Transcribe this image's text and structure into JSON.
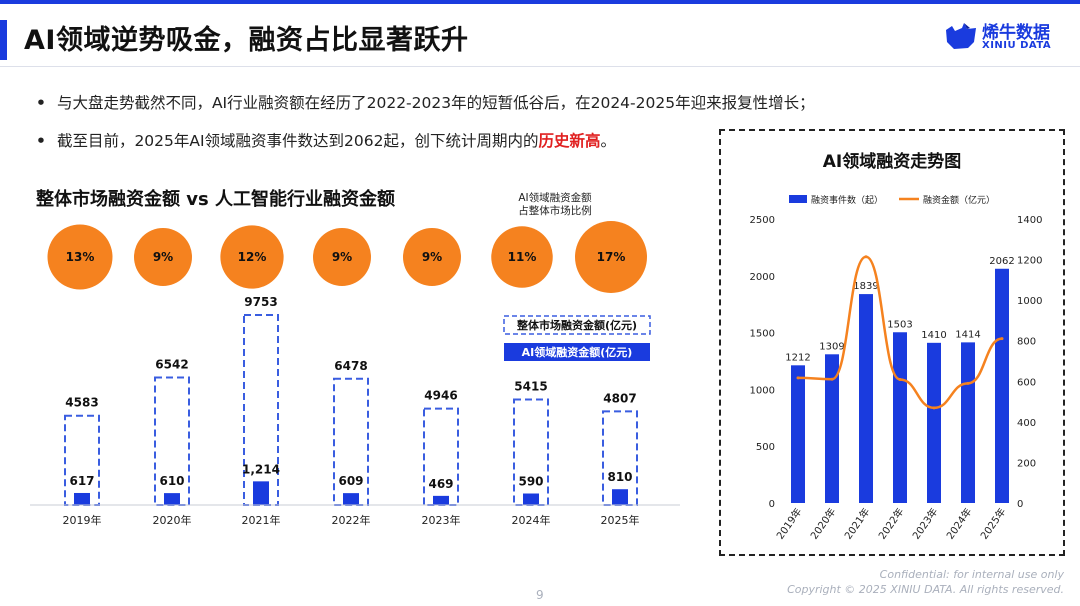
{
  "header": {
    "title": "AI领域逆势吸金，融资占比显著跃升",
    "logo_name": "烯牛数据",
    "logo_sub": "XINIU DATA"
  },
  "bullets": [
    {
      "text": "与大盘走势截然不同，AI行业融资额在经历了2022-2023年的短暂低谷后，在2024-2025年迎来报复性增长；"
    },
    {
      "text_before": "截至目前，2025年AI领域融资事件数达到2062起，创下统计周期内的",
      "highlight": "历史新高",
      "text_after": "。"
    }
  ],
  "colors": {
    "brand_blue": "#1a3bde",
    "orange": "#f5821f",
    "highlight_red": "#e02020"
  },
  "chart_data": [
    {
      "type": "bar",
      "title": "整体市场融资金额 vs 人工智能行业融资金额",
      "categories": [
        "2019年",
        "2020年",
        "2021年",
        "2022年",
        "2023年",
        "2024年",
        "2025年"
      ],
      "series": [
        {
          "name": "整体市场融资金额(亿元)",
          "values": [
            4583,
            6542,
            9753,
            6478,
            4946,
            5415,
            4807
          ],
          "labels": [
            "4583",
            "6542",
            "9753",
            "6478",
            "4946",
            "5415",
            "4807"
          ]
        },
        {
          "name": "AI领域融资金额(亿元)",
          "values": [
            617,
            610,
            1214,
            609,
            469,
            590,
            810
          ],
          "labels": [
            "617",
            "610",
            "1,214",
            "609",
            "469",
            "590",
            "810"
          ]
        }
      ],
      "ratio_caption_lines": [
        "AI领域融资金额",
        "占整体市场比例"
      ],
      "ratios": [
        "13%",
        "9%",
        "12%",
        "9%",
        "9%",
        "11%",
        "17%"
      ],
      "ratio_values": [
        13,
        9,
        12,
        9,
        9,
        11,
        17
      ]
    },
    {
      "type": "bar",
      "title": "AI领域融资走势图",
      "categories": [
        "2019年",
        "2020年",
        "2021年",
        "2022年",
        "2023年",
        "2024年",
        "2025年"
      ],
      "series": [
        {
          "name": "融资事件数（起）",
          "type": "bar",
          "axis": "left",
          "values": [
            1212,
            1309,
            1839,
            1503,
            1410,
            1414,
            2062
          ]
        },
        {
          "name": "融资金额（亿元）",
          "type": "line",
          "axis": "right",
          "values": [
            617,
            610,
            1214,
            609,
            469,
            590,
            810
          ]
        }
      ],
      "y_left": {
        "range": [
          0,
          2500
        ],
        "ticks": [
          "0",
          "500",
          "1000",
          "1500",
          "2000",
          "2500"
        ]
      },
      "y_right": {
        "range": [
          0,
          1400
        ],
        "ticks": [
          "0",
          "200",
          "400",
          "600",
          "800",
          "1000",
          "1200",
          "1400"
        ]
      },
      "grid": false,
      "legend": "top"
    }
  ],
  "footer": {
    "confidential": "Confidential: for internal use only",
    "copyright": "Copyright © 2025 XINIU DATA.  All rights reserved.",
    "page": "9"
  }
}
